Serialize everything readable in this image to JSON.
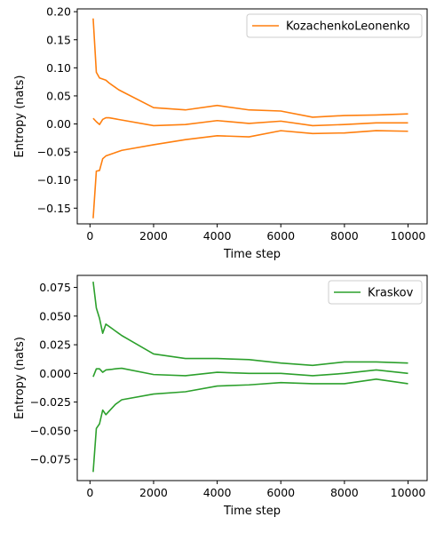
{
  "chart_data": [
    {
      "type": "line",
      "legend": {
        "entries": [
          "KozachenkoLeonenko"
        ],
        "placement": "top-right"
      },
      "xlabel": "Time step",
      "ylabel": "Entropy (nats)",
      "xlim": [
        -400,
        10600
      ],
      "ylim": [
        -0.178,
        0.205
      ],
      "xticks": [
        0,
        2000,
        4000,
        6000,
        8000,
        10000
      ],
      "xtick_labels": [
        "0",
        "2000",
        "4000",
        "6000",
        "8000",
        "10000"
      ],
      "yticks": [
        0.2,
        0.15,
        0.1,
        0.05,
        0.0,
        -0.05,
        -0.1,
        -0.15
      ],
      "ytick_labels": [
        "0.20",
        "0.15",
        "0.10",
        "0.05",
        "0.00",
        "−0.05",
        "−0.10",
        "−0.15"
      ],
      "color": "#ff7f0e",
      "x": [
        100,
        200,
        300,
        400,
        500,
        600,
        700,
        800,
        900,
        1000,
        2000,
        3000,
        4000,
        5000,
        6000,
        7000,
        8000,
        9000,
        10000
      ],
      "series": [
        {
          "values": [
            0.188,
            0.092,
            0.082,
            0.08,
            0.078,
            0.073,
            0.069,
            0.065,
            0.061,
            0.058,
            0.029,
            0.025,
            0.033,
            0.025,
            0.023,
            0.012,
            0.015,
            0.016,
            0.018
          ]
        },
        {
          "values": [
            0.01,
            0.004,
            -0.001,
            0.008,
            0.011,
            0.011,
            0.01,
            0.009,
            0.008,
            0.007,
            -0.003,
            -0.001,
            0.006,
            0.001,
            0.005,
            -0.003,
            -0.001,
            0.002,
            0.002
          ]
        },
        {
          "values": [
            -0.168,
            -0.084,
            -0.083,
            -0.062,
            -0.057,
            -0.055,
            -0.053,
            -0.051,
            -0.049,
            -0.047,
            -0.037,
            -0.028,
            -0.021,
            -0.023,
            -0.012,
            -0.017,
            -0.016,
            -0.012,
            -0.013
          ]
        }
      ]
    },
    {
      "type": "line",
      "legend": {
        "entries": [
          "Kraskov"
        ],
        "placement": "top-right"
      },
      "xlabel": "Time step",
      "ylabel": "Entropy (nats)",
      "xlim": [
        -400,
        10600
      ],
      "ylim": [
        -0.0935,
        0.0855
      ],
      "xticks": [
        0,
        2000,
        4000,
        6000,
        8000,
        10000
      ],
      "xtick_labels": [
        "0",
        "2000",
        "4000",
        "6000",
        "8000",
        "10000"
      ],
      "yticks": [
        0.075,
        0.05,
        0.025,
        0.0,
        -0.025,
        -0.05,
        -0.075
      ],
      "ytick_labels": [
        "0.075",
        "0.050",
        "0.025",
        "0.000",
        "−0.025",
        "−0.050",
        "−0.075"
      ],
      "color": "#2ca02c",
      "x": [
        100,
        200,
        300,
        400,
        500,
        600,
        700,
        800,
        900,
        1000,
        2000,
        3000,
        4000,
        5000,
        6000,
        7000,
        8000,
        9000,
        10000
      ],
      "series": [
        {
          "values": [
            0.08,
            0.057,
            0.048,
            0.035,
            0.043,
            0.041,
            0.039,
            0.037,
            0.035,
            0.033,
            0.017,
            0.013,
            0.013,
            0.012,
            0.009,
            0.007,
            0.01,
            0.01,
            0.009
          ]
        },
        {
          "values": [
            -0.003,
            0.004,
            0.004,
            0.001,
            0.003,
            0.0033,
            0.0036,
            0.004,
            0.0043,
            0.0045,
            -0.001,
            -0.002,
            0.001,
            0.0,
            0.0,
            -0.002,
            0.0,
            0.003,
            0.0
          ]
        },
        {
          "values": [
            -0.086,
            -0.048,
            -0.044,
            -0.032,
            -0.036,
            -0.033,
            -0.03,
            -0.027,
            -0.025,
            -0.023,
            -0.018,
            -0.016,
            -0.011,
            -0.01,
            -0.008,
            -0.009,
            -0.009,
            -0.005,
            -0.009
          ]
        }
      ]
    }
  ]
}
